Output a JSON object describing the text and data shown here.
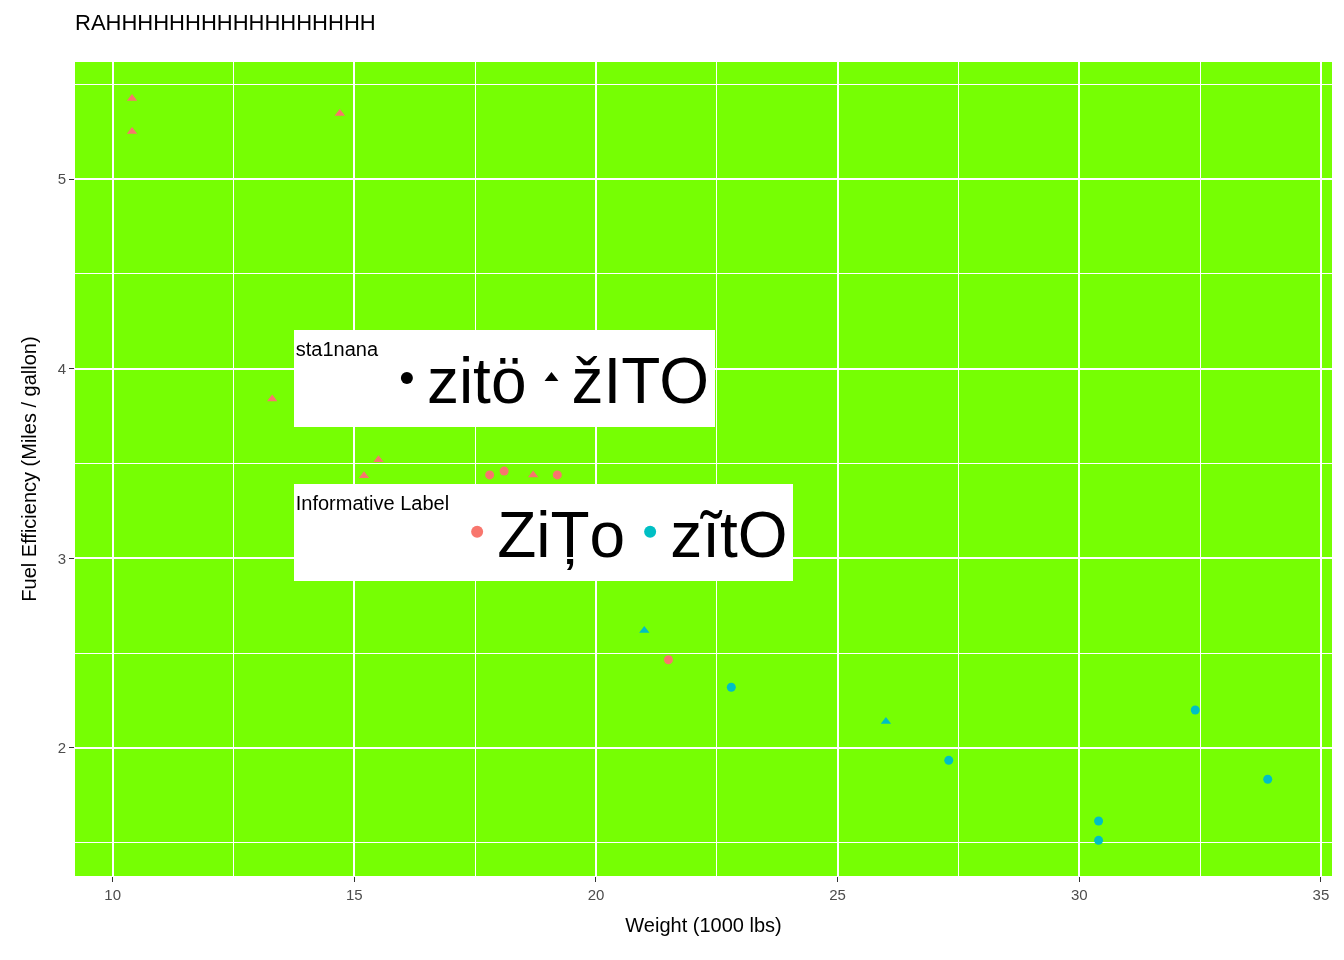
{
  "chart_data": {
    "type": "scatter",
    "title": "RAHHHHHHHHHHHHHHHHH",
    "xlabel": "Weight (1000 lbs)",
    "ylabel": "Fuel Efficiency (Miles / gallon)",
    "legend_title": [
      "sta1nana",
      "Informative Label"
    ],
    "series": [
      {
        "name": "zitö",
        "color": "#000000",
        "marker": "circle"
      },
      {
        "name": "žITO",
        "color": "#000000",
        "marker": "triangle"
      },
      {
        "name": "ZiȚo",
        "color": "#f8766d",
        "x": [
          10.4,
          10.4,
          14.7,
          13.3,
          15.5,
          15.2,
          18.7,
          18.1,
          17.8,
          19.2,
          21.5
        ],
        "values": [
          5.25,
          5.424,
          5.345,
          3.84,
          3.52,
          3.435,
          3.44,
          3.46,
          3.44,
          3.44,
          2.465
        ],
        "marker": [
          "triangle",
          "triangle",
          "triangle",
          "triangle",
          "triangle",
          "triangle",
          "triangle",
          "circle",
          "circle",
          "circle",
          "circle"
        ]
      },
      {
        "name": "zĩtO",
        "color": "#00bfc4",
        "x": [
          21.0,
          22.8,
          26.0,
          27.3,
          30.4,
          30.4,
          32.4,
          33.9
        ],
        "values": [
          2.62,
          2.32,
          2.14,
          1.935,
          1.615,
          1.513,
          2.2,
          1.835
        ],
        "marker": [
          "triangle",
          "circle",
          "triangle",
          "circle",
          "circle",
          "circle",
          "circle",
          "circle"
        ]
      }
    ],
    "xlim": [
      9.22,
      35.23
    ],
    "ylim": [
      1.325,
      5.617
    ],
    "xticks": [
      10,
      15,
      20,
      25,
      30,
      35
    ],
    "yticks": [
      2,
      3,
      4,
      5
    ],
    "grid": true,
    "legend": "center"
  }
}
